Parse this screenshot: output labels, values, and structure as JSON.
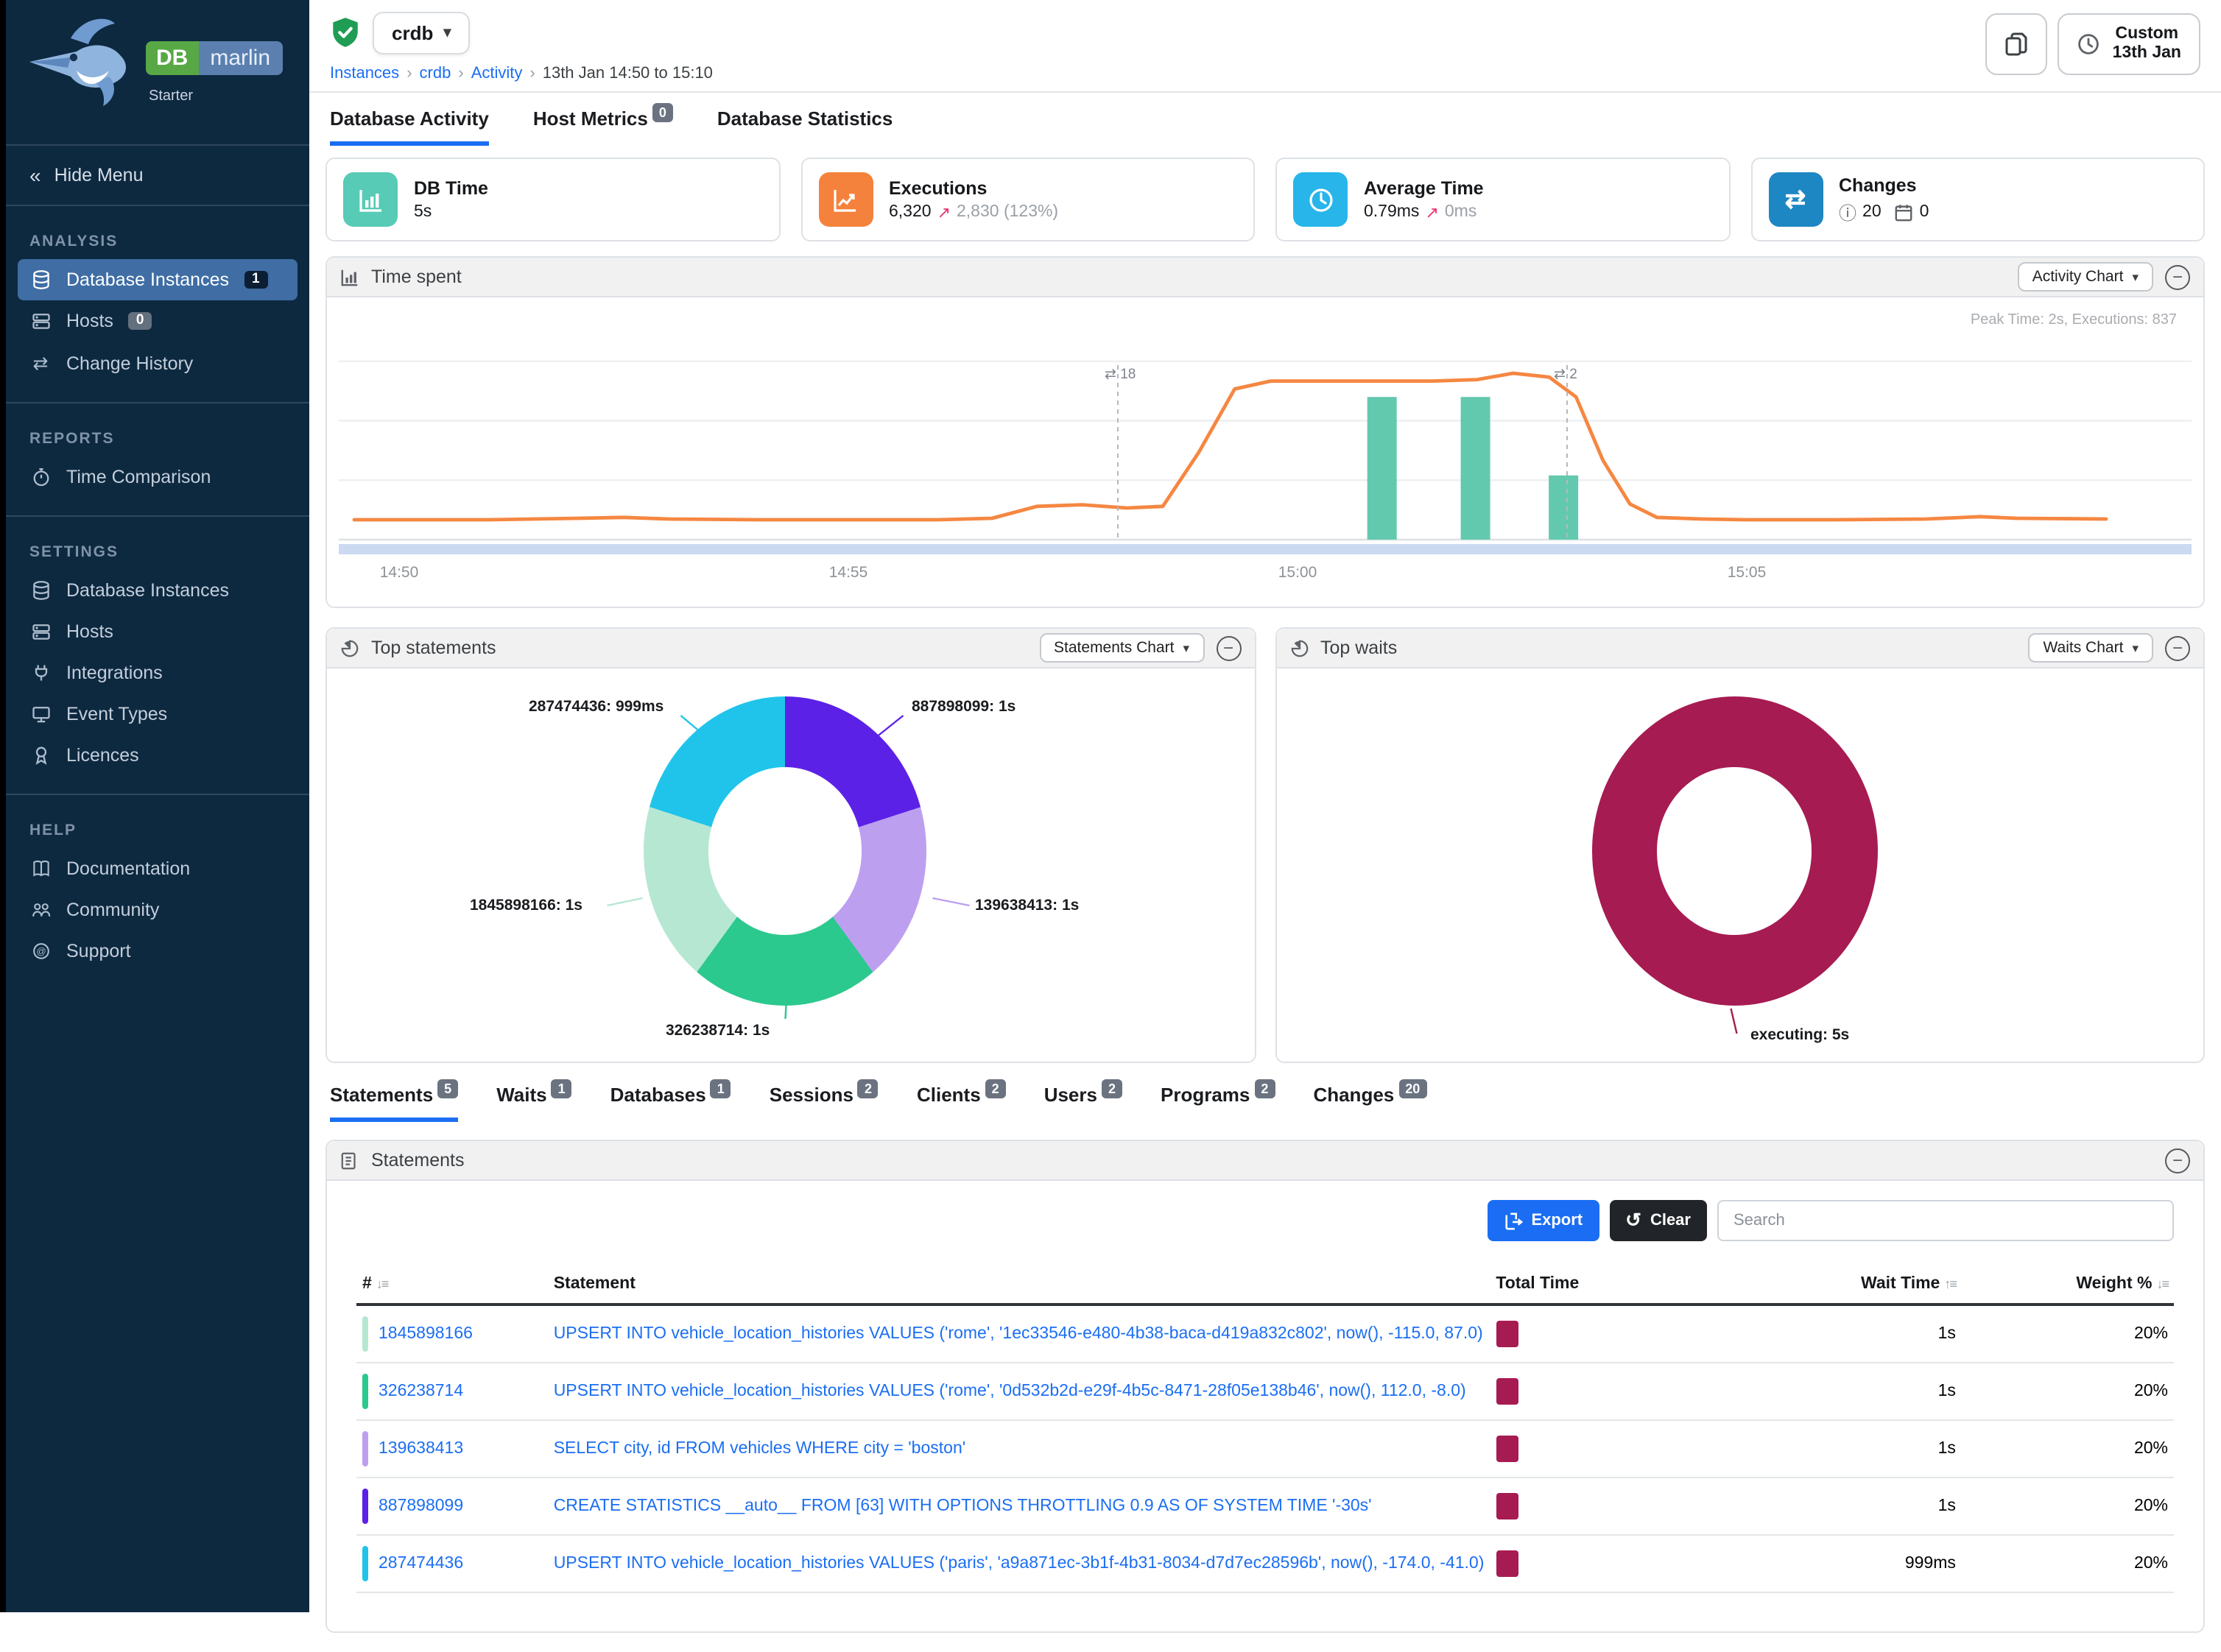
{
  "brand": {
    "db": "DB",
    "marlin": "marlin",
    "edition": "Starter"
  },
  "icons": {
    "chevron_down": "▾",
    "breadcrumb_separator": "›",
    "hide_menu_chevrons": "«",
    "swap": "⇄",
    "info": "ⓘ",
    "sort_asc": "↑",
    "sort_desc": "↓",
    "sort_lines": "≡",
    "minus": "−",
    "undo": "↺"
  },
  "colors": {
    "accent_blue": "#1b6ef3",
    "teal": "#57cbb5",
    "orange": "#f5823c",
    "light_blue": "#27b5ea",
    "steel_blue": "#1d87c3",
    "crimson": "#a61b52"
  },
  "sidebar": {
    "hide_menu": "Hide Menu",
    "sections": [
      {
        "title": "ANALYSIS",
        "items": [
          {
            "label": "Database Instances",
            "badge": "1",
            "active": true
          },
          {
            "label": "Hosts",
            "badge": "0"
          },
          {
            "label": "Change History"
          }
        ]
      },
      {
        "title": "REPORTS",
        "items": [
          {
            "label": "Time Comparison"
          }
        ]
      },
      {
        "title": "SETTINGS",
        "items": [
          {
            "label": "Database Instances"
          },
          {
            "label": "Hosts"
          },
          {
            "label": "Integrations"
          },
          {
            "label": "Event Types"
          },
          {
            "label": "Licences"
          }
        ]
      },
      {
        "title": "HELP",
        "items": [
          {
            "label": "Documentation"
          },
          {
            "label": "Community"
          },
          {
            "label": "Support"
          }
        ]
      }
    ]
  },
  "header": {
    "instance_name": "crdb",
    "breadcrumbs": [
      "Instances",
      "crdb",
      "Activity",
      "13th Jan 14:50 to 15:10"
    ],
    "time_range_button": {
      "line1": "Custom",
      "line2": "13th Jan"
    }
  },
  "main_tabs": [
    {
      "label": "Database Activity",
      "active": true
    },
    {
      "label": "Host Metrics",
      "badge": "0"
    },
    {
      "label": "Database Statistics"
    }
  ],
  "cards": {
    "db_time": {
      "title": "DB Time",
      "value": "5s"
    },
    "executions": {
      "title": "Executions",
      "value": "6,320",
      "delta_arrow": "↗",
      "delta": "2,830 (123%)"
    },
    "average_time": {
      "title": "Average Time",
      "value": "0.79ms",
      "delta_arrow": "↗",
      "delta": "0ms"
    },
    "changes": {
      "title": "Changes",
      "info_count": "20",
      "calendar_count": "0"
    }
  },
  "time_spent_panel": {
    "title": "Time spent",
    "chart_selector": "Activity Chart"
  },
  "top_statements_panel": {
    "title": "Top statements",
    "chart_selector": "Statements Chart"
  },
  "top_waits_panel": {
    "title": "Top waits",
    "chart_selector": "Waits Chart"
  },
  "chart_data": [
    {
      "type": "line+bar",
      "title": "Time spent",
      "peak_annotation": "Peak Time: 2s, Executions: 837",
      "x_axis": {
        "ticks": [
          "14:50",
          "14:55",
          "15:00",
          "15:05"
        ],
        "tick_minutes": [
          0,
          5,
          10,
          15
        ],
        "start": "14:50",
        "end": "15:10"
      },
      "ylim": [
        0,
        2.35
      ],
      "gridline_values": [
        0.75,
        1.5,
        2.25
      ],
      "line_series": {
        "name": "DB Time (s)",
        "color": "#f58742",
        "points": [
          [
            -0.5,
            0.25
          ],
          [
            0,
            0.25
          ],
          [
            1,
            0.25
          ],
          [
            2,
            0.27
          ],
          [
            2.5,
            0.28
          ],
          [
            3,
            0.26
          ],
          [
            4,
            0.25
          ],
          [
            5,
            0.25
          ],
          [
            6,
            0.25
          ],
          [
            6.6,
            0.27
          ],
          [
            7.1,
            0.42
          ],
          [
            7.6,
            0.44
          ],
          [
            8.1,
            0.4
          ],
          [
            8.5,
            0.42
          ],
          [
            8.9,
            1.1
          ],
          [
            9.3,
            1.9
          ],
          [
            9.7,
            2.0
          ],
          [
            10.5,
            2.0
          ],
          [
            11.5,
            2.0
          ],
          [
            12.0,
            2.02
          ],
          [
            12.4,
            2.1
          ],
          [
            12.8,
            2.05
          ],
          [
            13.1,
            1.8
          ],
          [
            13.4,
            1.0
          ],
          [
            13.7,
            0.45
          ],
          [
            14,
            0.28
          ],
          [
            14.5,
            0.26
          ],
          [
            15,
            0.25
          ],
          [
            16,
            0.25
          ],
          [
            17,
            0.26
          ],
          [
            17.6,
            0.29
          ],
          [
            18,
            0.27
          ],
          [
            19,
            0.26
          ]
        ]
      },
      "bar_series": {
        "name": "Executions",
        "color": "#63c9ae",
        "bars": [
          [
            10.94,
            1.8
          ],
          [
            11.98,
            1.8
          ],
          [
            12.96,
            0.81
          ]
        ]
      },
      "change_markers": [
        {
          "minute": 8.0,
          "count": "18"
        },
        {
          "minute": 13.0,
          "count": "2"
        }
      ]
    },
    {
      "type": "donut",
      "title": "Top statements",
      "slices": [
        {
          "label": "887898099",
          "value": "1s",
          "seconds": 1.0,
          "color": "#5b21e6",
          "display": "887898099: 1s"
        },
        {
          "label": "139638413",
          "value": "1s",
          "seconds": 1.0,
          "color": "#bd9ff0",
          "display": "139638413: 1s"
        },
        {
          "label": "326238714",
          "value": "1s",
          "seconds": 1.0,
          "color": "#2bc98e",
          "display": "326238714: 1s"
        },
        {
          "label": "1845898166",
          "value": "1s",
          "seconds": 1.0,
          "color": "#b6e7d2",
          "display": "1845898166: 1s"
        },
        {
          "label": "287474436",
          "value": "999ms",
          "seconds": 0.999,
          "color": "#20c4ea",
          "display": "287474436: 999ms"
        }
      ]
    },
    {
      "type": "donut",
      "title": "Top waits",
      "slices": [
        {
          "label": "executing",
          "value": "5s",
          "seconds": 5.0,
          "color": "#a61b52",
          "display": "executing: 5s"
        }
      ]
    }
  ],
  "bottom_tabs": [
    {
      "label": "Statements",
      "badge": "5",
      "active": true
    },
    {
      "label": "Waits",
      "badge": "1"
    },
    {
      "label": "Databases",
      "badge": "1"
    },
    {
      "label": "Sessions",
      "badge": "2"
    },
    {
      "label": "Clients",
      "badge": "2"
    },
    {
      "label": "Users",
      "badge": "2"
    },
    {
      "label": "Programs",
      "badge": "2"
    },
    {
      "label": "Changes",
      "badge": "20"
    }
  ],
  "statements_panel": {
    "title": "Statements",
    "toolbar": {
      "export_label": "Export",
      "clear_label": "Clear",
      "search_placeholder": "Search"
    },
    "columns": {
      "num": "#",
      "statement": "Statement",
      "total_time": "Total Time",
      "wait_time": "Wait Time",
      "weight": "Weight %"
    },
    "total_time_bar_color": "#a61b52",
    "rows": [
      {
        "id": "1845898166",
        "color": "#b6e7d2",
        "statement": "UPSERT INTO vehicle_location_histories VALUES ('rome', '1ec33546-e480-4b38-baca-d419a832c802', now(), -115.0, 87.0)",
        "wait_time": "1s",
        "weight": "20%"
      },
      {
        "id": "326238714",
        "color": "#2bc98e",
        "statement": "UPSERT INTO vehicle_location_histories VALUES ('rome', '0d532b2d-e29f-4b5c-8471-28f05e138b46', now(), 112.0, -8.0)",
        "wait_time": "1s",
        "weight": "20%"
      },
      {
        "id": "139638413",
        "color": "#bd9ff0",
        "statement": "SELECT city, id FROM vehicles WHERE city = 'boston'",
        "wait_time": "1s",
        "weight": "20%"
      },
      {
        "id": "887898099",
        "color": "#5b21e6",
        "statement": "CREATE STATISTICS __auto__ FROM [63] WITH OPTIONS THROTTLING 0.9 AS OF SYSTEM TIME '-30s'",
        "wait_time": "1s",
        "weight": "20%"
      },
      {
        "id": "287474436",
        "color": "#20c4ea",
        "statement": "UPSERT INTO vehicle_location_histories VALUES ('paris', 'a9a871ec-3b1f-4b31-8034-d7d7ec28596b', now(), -174.0, -41.0)",
        "wait_time": "999ms",
        "weight": "20%"
      }
    ]
  }
}
